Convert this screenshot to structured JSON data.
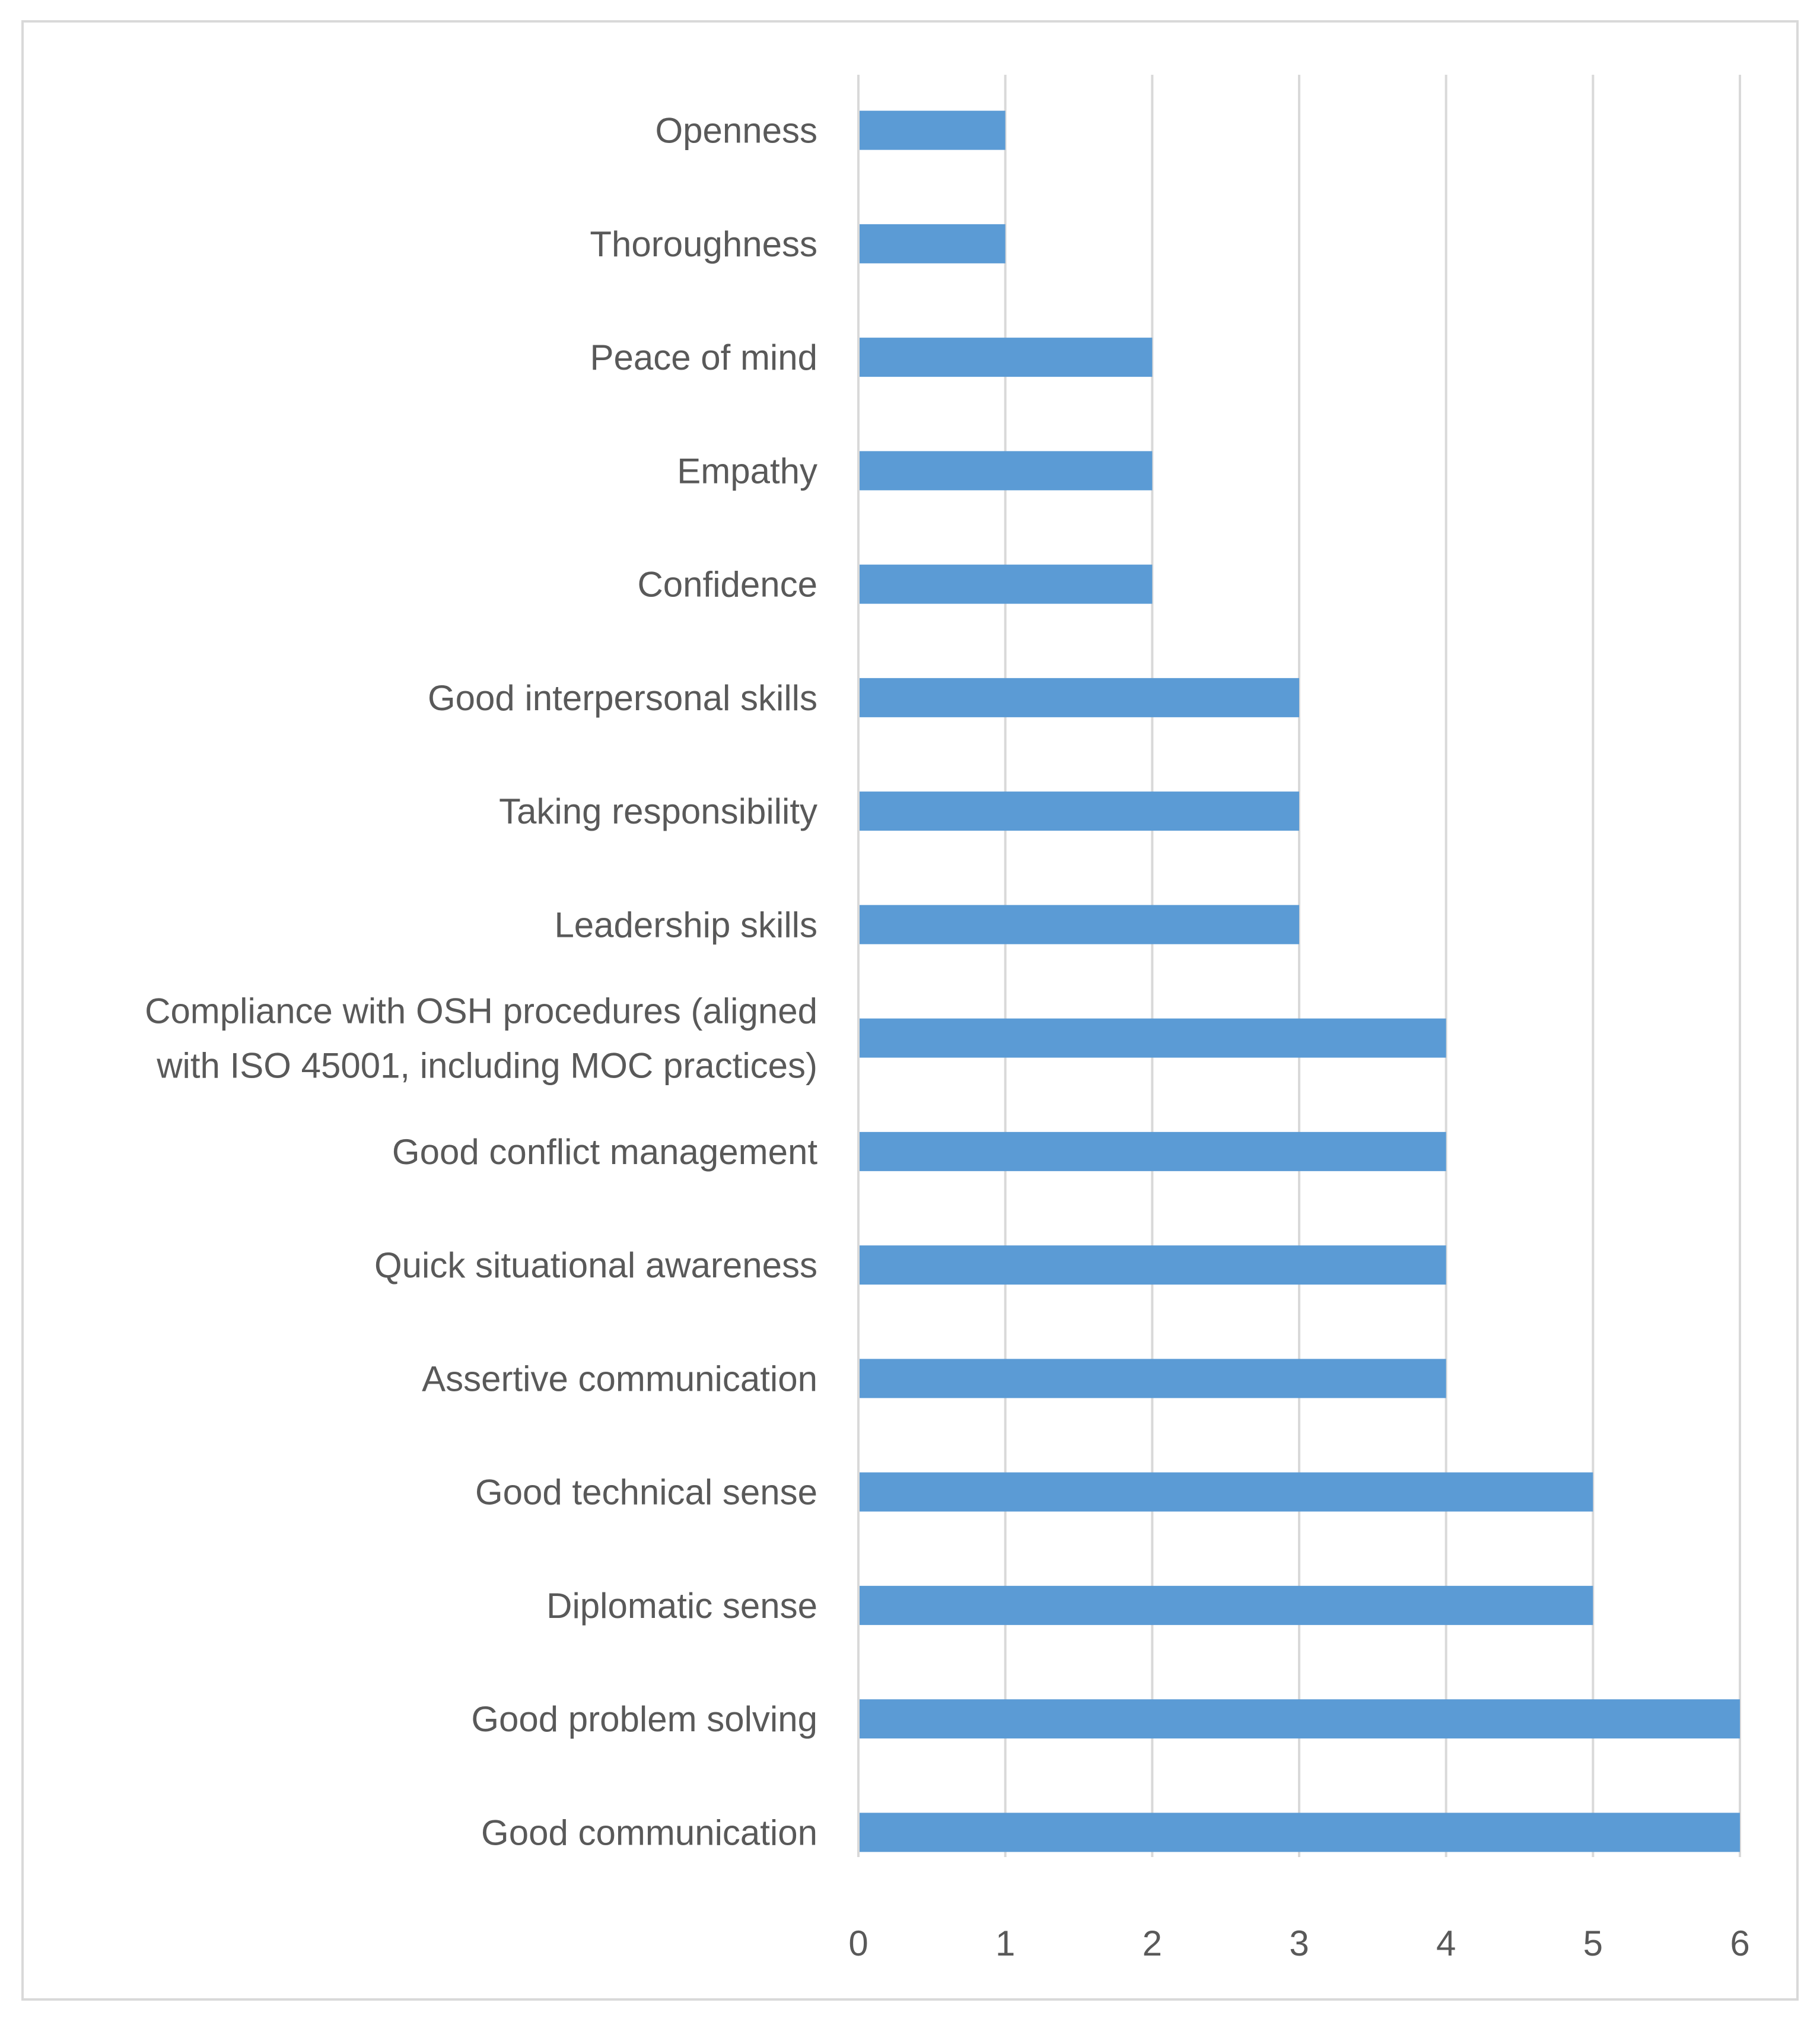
{
  "chart_data": {
    "type": "bar",
    "orientation": "horizontal",
    "title": "",
    "xlabel": "",
    "ylabel": "",
    "xlim": [
      0,
      6
    ],
    "x_ticks": [
      0,
      1,
      2,
      3,
      4,
      5,
      6
    ],
    "grid": true,
    "legend": "none",
    "bar_color": "#5b9bd5",
    "categories": [
      "Openness",
      "Thoroughness",
      "Peace of mind",
      "Empathy",
      "Confidence",
      "Good interpersonal skills",
      "Taking responsibility",
      "Leadership skills",
      "Compliance with OSH procedures (aligned with ISO 45001, including MOC practices)",
      "Good conflict management",
      "Quick situational awareness",
      "Assertive communication",
      "Good technical sense",
      "Diplomatic sense",
      "Good problem solving",
      "Good communication"
    ],
    "label_lines": [
      [
        "Openness"
      ],
      [
        "Thoroughness"
      ],
      [
        "Peace of mind"
      ],
      [
        "Empathy"
      ],
      [
        "Confidence"
      ],
      [
        "Good interpersonal skills"
      ],
      [
        "Taking responsibility"
      ],
      [
        "Leadership skills"
      ],
      [
        "Compliance with OSH procedures (aligned",
        "with ISO 45001, including MOC practices)"
      ],
      [
        "Good conflict management"
      ],
      [
        "Quick situational awareness"
      ],
      [
        "Assertive communication"
      ],
      [
        "Good technical sense"
      ],
      [
        "Diplomatic sense"
      ],
      [
        "Good problem solving"
      ],
      [
        "Good communication"
      ]
    ],
    "values": [
      1,
      1,
      2,
      2,
      2,
      3,
      3,
      3,
      4,
      4,
      4,
      4,
      5,
      5,
      6,
      6
    ]
  }
}
